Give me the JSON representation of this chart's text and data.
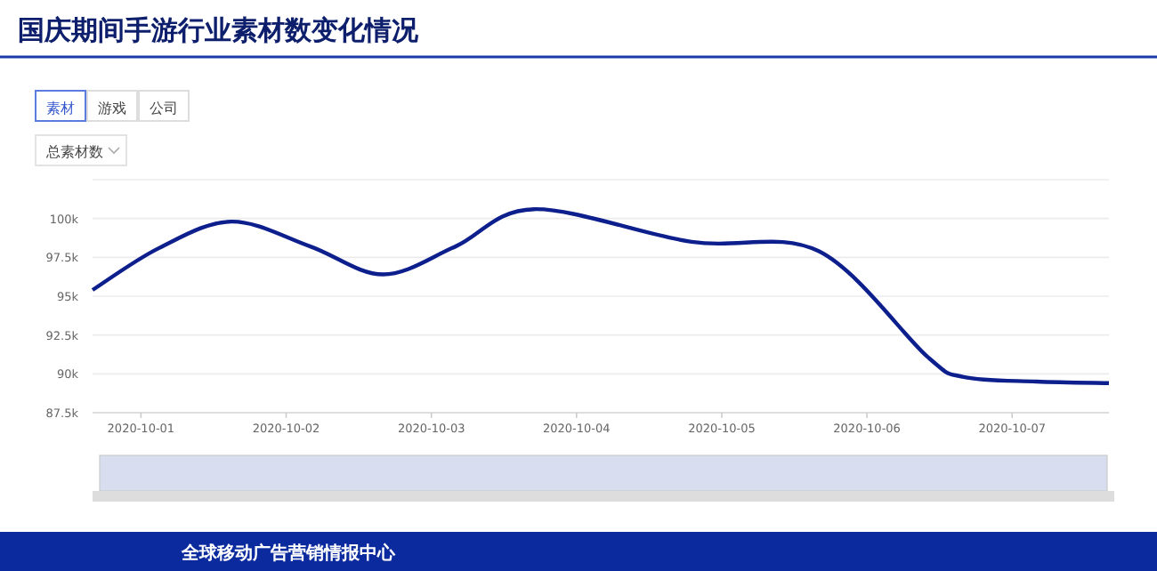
{
  "chart_data": {
    "type": "line",
    "title": "国庆期间手游行业素材数变化情况",
    "annotations": [
      "素材",
      "游戏",
      "公司",
      "总素材数",
      "全球移动广告营销情报中心"
    ],
    "x": [
      "2020-09-30T16:00",
      "2020-10-01T03:00",
      "2020-10-01T15:00",
      "2020-10-02T04:00",
      "2020-10-02T16:00",
      "2020-10-03T04:00",
      "2020-10-03T17:00",
      "2020-10-04T19:00",
      "2020-10-05T16:00",
      "2020-10-06T10:00",
      "2020-10-06T16:00",
      "2020-10-07T04:00",
      "2020-10-07T16:00"
    ],
    "series": [
      {
        "color": "#0d1f8c",
        "values": [
          95400,
          98100,
          99800,
          98200,
          96400,
          98200,
          100600,
          98500,
          97900,
          91100,
          89800,
          89500,
          89400
        ]
      }
    ],
    "xlim": [
      "2020-09-30T16:00",
      "2020-10-07T16:00"
    ],
    "xticks": [
      "2020-10-01",
      "2020-10-02",
      "2020-10-03",
      "2020-10-04",
      "2020-10-05",
      "2020-10-06",
      "2020-10-07"
    ],
    "ylim": [
      87500,
      102500
    ],
    "yticks": [
      {
        "value": 87500,
        "label": "87.5k"
      },
      {
        "value": 90000,
        "label": "90k"
      },
      {
        "value": 92500,
        "label": "92.5k"
      },
      {
        "value": 95000,
        "label": "95k"
      },
      {
        "value": 97500,
        "label": "97.5k"
      },
      {
        "value": 100000,
        "label": "100k"
      },
      {
        "value": 102500,
        "label": null
      }
    ],
    "grid": "y",
    "marker": "none",
    "line_style": "solid"
  }
}
